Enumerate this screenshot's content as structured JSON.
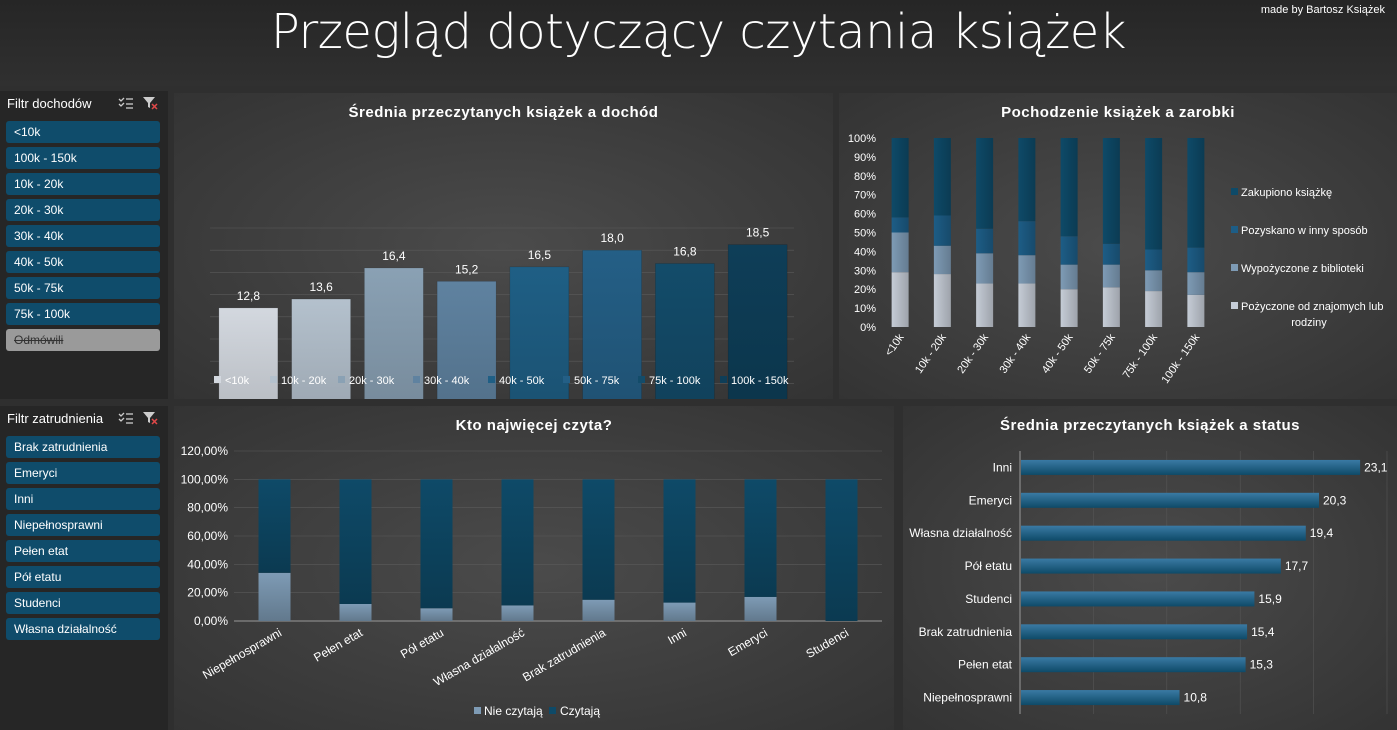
{
  "header": {
    "title": "Przegląd dotyczący czytania książek",
    "credit": "made by Bartosz Książek"
  },
  "slicer_income": {
    "title": "Filtr dochodów",
    "items": [
      "<10k",
      "100k - 150k",
      "10k - 20k",
      "20k - 30k",
      "30k - 40k",
      "40k - 50k",
      "50k - 75k",
      "75k - 100k",
      "Odmówili"
    ]
  },
  "slicer_employment": {
    "title": "Filtr zatrudnienia",
    "items": [
      "Brak zatrudnienia",
      "Emeryci",
      "Inni",
      "Niepełnosprawni",
      "Pełen etat",
      "Pół etatu",
      "Studenci",
      "Własna działalność"
    ]
  },
  "colors": {
    "dark": "#0e4a68",
    "mid": "#3d6f92",
    "light": "#7e9bb5",
    "pale": "#c5ccd6"
  },
  "chart_data": [
    {
      "type": "bar",
      "title": "Średnia przeczytanych książek a dochód",
      "categories": [
        "<10k",
        "10k - 20k",
        "20k - 30k",
        "30k - 40k",
        "40k - 50k",
        "50k - 75k",
        "75k - 100k",
        "100k - 150k"
      ],
      "values": [
        12.8,
        13.6,
        16.4,
        15.2,
        16.5,
        18.0,
        16.8,
        18.5
      ],
      "labels": [
        "12,8",
        "13,6",
        "16,4",
        "15,2",
        "16,5",
        "18,0",
        "16,8",
        "18,5"
      ],
      "colors": [
        "#d3d8df",
        "#b4c1cd",
        "#8aa1b4",
        "#5f82a0",
        "#1f5f85",
        "#245f86",
        "#134c6a",
        "#0e3e58"
      ],
      "ylim": [
        0,
        20
      ],
      "legend": "bottom"
    },
    {
      "type": "bar",
      "stacked": "percent",
      "title": "Pochodzenie książek a zarobki",
      "categories": [
        "<10k",
        "10k - 20k",
        "20k - 30k",
        "30k - 40k",
        "40k - 50k",
        "50k - 75k",
        "75k - 100k",
        "100k - 150k"
      ],
      "yticks": [
        "0%",
        "10%",
        "20%",
        "30%",
        "40%",
        "50%",
        "60%",
        "70%",
        "80%",
        "90%",
        "100%"
      ],
      "series": [
        {
          "name": "Pożyczone od znajomych lub rodziny",
          "values": [
            0.29,
            0.28,
            0.23,
            0.23,
            0.2,
            0.21,
            0.19,
            0.17
          ],
          "color": "#c5ccd6"
        },
        {
          "name": "Wypożyczone z biblioteki",
          "values": [
            0.21,
            0.15,
            0.16,
            0.15,
            0.13,
            0.12,
            0.11,
            0.12
          ],
          "color": "#7e9bb5"
        },
        {
          "name": "Pozyskano w inny sposób",
          "values": [
            0.08,
            0.16,
            0.13,
            0.18,
            0.15,
            0.11,
            0.11,
            0.13
          ],
          "color": "#1d5d86"
        },
        {
          "name": "Zakupiono książkę",
          "values": [
            0.42,
            0.41,
            0.48,
            0.44,
            0.52,
            0.56,
            0.59,
            0.58
          ],
          "color": "#0e4a68"
        }
      ],
      "legend": "right"
    },
    {
      "type": "bar",
      "stacked": "percent",
      "title": "Kto najwięcej czyta?",
      "categories": [
        "Niepełnosprawni",
        "Pełen etat",
        "Pół etatu",
        "Własna działalność",
        "Brak zatrudnienia",
        "Inni",
        "Emeryci",
        "Studenci"
      ],
      "yticks": [
        "0,00%",
        "20,00%",
        "40,00%",
        "60,00%",
        "80,00%",
        "100,00%",
        "120,00%"
      ],
      "ylim": [
        0,
        1.2
      ],
      "series": [
        {
          "name": "Nie czytają",
          "values": [
            0.34,
            0.12,
            0.09,
            0.11,
            0.15,
            0.13,
            0.17,
            0.0
          ],
          "color": "#7e9bb5"
        },
        {
          "name": "Czytają",
          "values": [
            0.66,
            0.88,
            0.91,
            0.89,
            0.85,
            0.87,
            0.83,
            1.0
          ],
          "color": "#0e4a68"
        }
      ],
      "legend": "bottom"
    },
    {
      "type": "bar",
      "orientation": "horizontal",
      "title": "Średnia przeczytanych książek a status",
      "categories": [
        "Inni",
        "Emeryci",
        "Własna działalność",
        "Pół etatu",
        "Studenci",
        "Brak zatrudnienia",
        "Pełen etat",
        "Niepełnosprawni"
      ],
      "values": [
        23.1,
        20.3,
        19.4,
        17.7,
        15.9,
        15.4,
        15.3,
        10.8
      ],
      "labels": [
        "23,1",
        "20,3",
        "19,4",
        "17,7",
        "15,9",
        "15,4",
        "15,3",
        "10,8"
      ],
      "xlim": [
        0,
        25
      ]
    }
  ]
}
